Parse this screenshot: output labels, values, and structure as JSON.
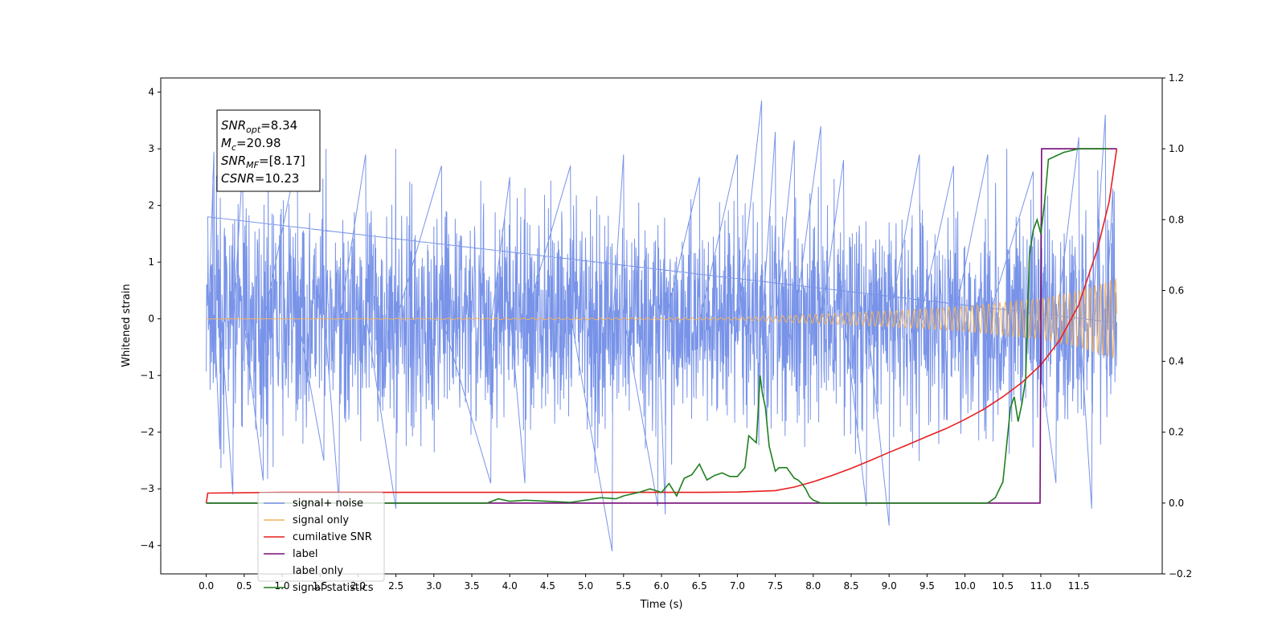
{
  "chart_data": {
    "type": "line",
    "title": "",
    "xlabel": "Time (s)",
    "ylabel": "Whitened strain",
    "xlim": [
      -0.6,
      12.6
    ],
    "ylim": [
      -4.5,
      4.25
    ],
    "y2lim": [
      -0.2,
      1.2
    ],
    "x_ticks": [
      "0.0",
      "0.5",
      "1.0",
      "1.5",
      "2.0",
      "2.5",
      "3.0",
      "3.5",
      "4.0",
      "4.5",
      "5.0",
      "5.5",
      "6.0",
      "6.5",
      "7.0",
      "7.5",
      "8.0",
      "8.5",
      "9.0",
      "9.5",
      "10.0",
      "10.5",
      "11.0",
      "11.5"
    ],
    "y_ticks": [
      "4",
      "3",
      "2",
      "1",
      "0",
      "−1",
      "−2",
      "−3",
      "−4"
    ],
    "y2_ticks": [
      "1.2",
      "1.0",
      "0.8",
      "0.6",
      "0.4",
      "0.2",
      "0.0",
      "−0.2"
    ],
    "grid": false,
    "legend_position": "lower-left",
    "annotation": [
      {
        "base": "SNR",
        "sub": "opt",
        "rest": "=8.34"
      },
      {
        "base": "M",
        "sub": "c",
        "rest": "=20.98"
      },
      {
        "base": "SNR",
        "sub": "MF",
        "rest": "=[8.17]"
      },
      {
        "base": "CSNR",
        "sub": "",
        "rest": "=10.23"
      }
    ],
    "series": [
      {
        "name": "signal+ noise",
        "color": "#7893e8",
        "axis": "left",
        "x_range": [
          0.0,
          12.0
        ],
        "band_halfwidth": 1.3,
        "spikes": [
          {
            "x": 0.02,
            "y": 1.8
          },
          {
            "x": 0.1,
            "y": 2.95
          },
          {
            "x": 0.18,
            "y": -2.3
          },
          {
            "x": 0.35,
            "y": -3.1
          },
          {
            "x": 0.48,
            "y": 2.7
          },
          {
            "x": 0.75,
            "y": -2.85
          },
          {
            "x": 1.2,
            "y": 2.85
          },
          {
            "x": 1.55,
            "y": -2.5
          },
          {
            "x": 1.75,
            "y": -3.25
          },
          {
            "x": 2.1,
            "y": 2.9
          },
          {
            "x": 2.5,
            "y": -3.35
          },
          {
            "x": 3.1,
            "y": 2.7
          },
          {
            "x": 3.75,
            "y": -2.9
          },
          {
            "x": 4.0,
            "y": 2.5
          },
          {
            "x": 4.2,
            "y": -2.9
          },
          {
            "x": 4.8,
            "y": 2.7
          },
          {
            "x": 5.35,
            "y": -4.1
          },
          {
            "x": 5.5,
            "y": 2.9
          },
          {
            "x": 5.95,
            "y": -3.3
          },
          {
            "x": 6.05,
            "y": -3.45
          },
          {
            "x": 6.5,
            "y": 2.5
          },
          {
            "x": 7.0,
            "y": 2.9
          },
          {
            "x": 7.32,
            "y": 3.85
          },
          {
            "x": 7.5,
            "y": 3.3
          },
          {
            "x": 7.75,
            "y": 3.15
          },
          {
            "x": 8.1,
            "y": 3.4
          },
          {
            "x": 8.4,
            "y": 2.8
          },
          {
            "x": 8.7,
            "y": -3.3
          },
          {
            "x": 9.0,
            "y": -3.65
          },
          {
            "x": 9.4,
            "y": 2.9
          },
          {
            "x": 9.85,
            "y": 2.7
          },
          {
            "x": 10.3,
            "y": 2.9
          },
          {
            "x": 10.9,
            "y": 2.6
          },
          {
            "x": 11.2,
            "y": -2.9
          },
          {
            "x": 11.5,
            "y": 3.2
          },
          {
            "x": 11.67,
            "y": -3.35
          },
          {
            "x": 11.85,
            "y": 3.6
          },
          {
            "x": 11.95,
            "y": 2.3
          }
        ]
      },
      {
        "name": "signal only",
        "color": "#f5b25d",
        "axis": "left",
        "x_range": [
          0.0,
          12.0
        ],
        "envelope": [
          {
            "x": 0.0,
            "amp": 0.0
          },
          {
            "x": 7.0,
            "amp": 0.02
          },
          {
            "x": 8.0,
            "amp": 0.08
          },
          {
            "x": 9.0,
            "amp": 0.14
          },
          {
            "x": 10.0,
            "amp": 0.22
          },
          {
            "x": 11.0,
            "amp": 0.36
          },
          {
            "x": 11.5,
            "amp": 0.5
          },
          {
            "x": 12.0,
            "amp": 0.72
          }
        ]
      },
      {
        "name": "cumilative SNR",
        "color": "#e81f1f",
        "axis": "right",
        "x": [
          0.0,
          0.02,
          1.0,
          2.0,
          3.0,
          4.0,
          5.0,
          6.0,
          6.5,
          7.0,
          7.5,
          7.75,
          8.0,
          8.25,
          8.5,
          8.75,
          9.0,
          9.25,
          9.5,
          9.75,
          10.0,
          10.25,
          10.5,
          10.75,
          11.0,
          11.25,
          11.5,
          11.75,
          11.9,
          12.0
        ],
        "values": [
          0.0,
          0.028,
          0.03,
          0.03,
          0.03,
          0.03,
          0.03,
          0.03,
          0.03,
          0.031,
          0.035,
          0.045,
          0.06,
          0.078,
          0.098,
          0.12,
          0.143,
          0.165,
          0.188,
          0.21,
          0.236,
          0.265,
          0.3,
          0.34,
          0.39,
          0.46,
          0.56,
          0.72,
          0.85,
          1.0
        ]
      },
      {
        "name": "label",
        "color": "#750d76",
        "axis": "right",
        "x": [
          0.0,
          10.99,
          11.01,
          12.0
        ],
        "values": [
          0.0,
          0.0,
          1.0,
          1.0
        ]
      },
      {
        "name": "label only",
        "color": "#d0d0d0",
        "axis": "right",
        "hidden": true
      },
      {
        "name": "signal statistics",
        "color": "#1f7f1f",
        "axis": "right",
        "x": [
          0.0,
          3.7,
          3.85,
          4.0,
          4.2,
          4.5,
          4.8,
          5.0,
          5.2,
          5.4,
          5.5,
          5.7,
          5.85,
          6.0,
          6.1,
          6.2,
          6.3,
          6.4,
          6.5,
          6.6,
          6.7,
          6.8,
          6.9,
          7.0,
          7.1,
          7.15,
          7.2,
          7.25,
          7.3,
          7.33,
          7.37,
          7.42,
          7.5,
          7.55,
          7.65,
          7.75,
          7.8,
          7.85,
          7.9,
          7.95,
          8.0,
          8.1,
          8.3,
          8.6,
          9.0,
          9.5,
          10.0,
          10.3,
          10.4,
          10.5,
          10.6,
          10.65,
          10.7,
          10.75,
          10.8,
          10.85,
          10.9,
          10.95,
          11.0,
          11.05,
          11.1,
          11.2,
          11.3,
          11.5,
          11.9
        ],
        "values": [
          0.0,
          0.0,
          0.012,
          0.005,
          0.008,
          0.005,
          0.002,
          0.008,
          0.015,
          0.012,
          0.02,
          0.03,
          0.04,
          0.03,
          0.055,
          0.02,
          0.07,
          0.08,
          0.11,
          0.065,
          0.078,
          0.085,
          0.075,
          0.075,
          0.1,
          0.19,
          0.18,
          0.17,
          0.36,
          0.31,
          0.27,
          0.16,
          0.09,
          0.1,
          0.1,
          0.07,
          0.065,
          0.055,
          0.04,
          0.018,
          0.008,
          0.0,
          0.0,
          0.0,
          0.0,
          0.0,
          0.0,
          0.0,
          0.015,
          0.06,
          0.27,
          0.3,
          0.23,
          0.28,
          0.35,
          0.7,
          0.77,
          0.8,
          0.76,
          0.85,
          0.97,
          0.98,
          0.99,
          1.0,
          1.0
        ]
      }
    ]
  }
}
